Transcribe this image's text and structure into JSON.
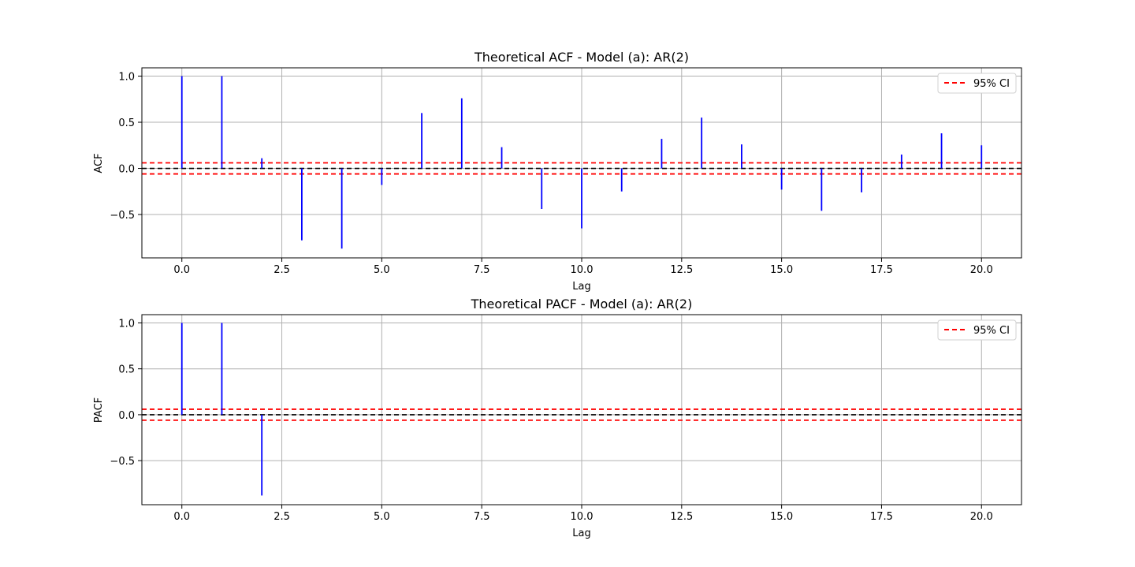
{
  "colors": {
    "stem": "#0000ff",
    "ci": "#ff0000",
    "zero_line": "#000000",
    "grid": "#b0b0b0",
    "frame": "#000000"
  },
  "chart_data": [
    {
      "type": "stem",
      "title": "Theoretical ACF - Model (a): AR(2)",
      "xlabel": "Lag",
      "ylabel": "ACF",
      "xlim": [
        -1,
        21
      ],
      "ylim": [
        -0.97,
        1.09
      ],
      "xticks": [
        0.0,
        2.5,
        5.0,
        7.5,
        10.0,
        12.5,
        15.0,
        17.5,
        20.0
      ],
      "xtick_labels": [
        "0.0",
        "2.5",
        "5.0",
        "7.5",
        "10.0",
        "12.5",
        "15.0",
        "17.5",
        "20.0"
      ],
      "yticks": [
        1.0,
        0.5,
        0.0,
        -0.5
      ],
      "ytick_labels": [
        "1.0",
        "0.5",
        "0.0",
        "−0.5"
      ],
      "grid": true,
      "legend": {
        "position": "top-right",
        "entries": [
          "95% CI"
        ]
      },
      "ci": 0.06,
      "x": [
        0,
        1,
        2,
        3,
        4,
        5,
        6,
        7,
        8,
        9,
        10,
        11,
        12,
        13,
        14,
        15,
        16,
        17,
        18,
        19,
        20
      ],
      "values": [
        1.0,
        1.0,
        0.11,
        -0.78,
        -0.87,
        -0.18,
        0.6,
        0.76,
        0.23,
        -0.44,
        -0.65,
        -0.25,
        0.32,
        0.55,
        0.26,
        -0.23,
        -0.46,
        -0.26,
        0.15,
        0.38,
        0.25
      ]
    },
    {
      "type": "stem",
      "title": "Theoretical PACF - Model (a): AR(2)",
      "xlabel": "Lag",
      "ylabel": "PACF",
      "xlim": [
        -1,
        21
      ],
      "ylim": [
        -0.98,
        1.09
      ],
      "xticks": [
        0.0,
        2.5,
        5.0,
        7.5,
        10.0,
        12.5,
        15.0,
        17.5,
        20.0
      ],
      "xtick_labels": [
        "0.0",
        "2.5",
        "5.0",
        "7.5",
        "10.0",
        "12.5",
        "15.0",
        "17.5",
        "20.0"
      ],
      "yticks": [
        1.0,
        0.5,
        0.0,
        -0.5
      ],
      "ytick_labels": [
        "1.0",
        "0.5",
        "0.0",
        "−0.5"
      ],
      "grid": true,
      "legend": {
        "position": "top-right",
        "entries": [
          "95% CI"
        ]
      },
      "ci": 0.06,
      "x": [
        0,
        1,
        2
      ],
      "values": [
        1.0,
        1.0,
        -0.88
      ]
    }
  ]
}
